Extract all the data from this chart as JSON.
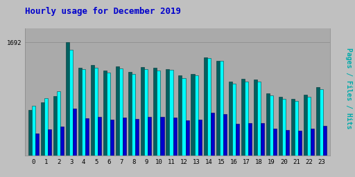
{
  "title": "Hourly usage for December 2019",
  "hours": [
    0,
    1,
    2,
    3,
    4,
    5,
    6,
    7,
    8,
    9,
    10,
    11,
    12,
    13,
    14,
    15,
    16,
    17,
    18,
    19,
    20,
    21,
    22,
    23
  ],
  "hits": [
    750,
    860,
    960,
    1580,
    1290,
    1310,
    1240,
    1300,
    1220,
    1290,
    1270,
    1280,
    1160,
    1200,
    1460,
    1410,
    1080,
    1110,
    1110,
    900,
    850,
    820,
    880,
    990
  ],
  "files": [
    680,
    800,
    890,
    1692,
    1310,
    1350,
    1270,
    1330,
    1255,
    1320,
    1310,
    1295,
    1195,
    1215,
    1470,
    1415,
    1110,
    1145,
    1140,
    930,
    875,
    845,
    910,
    1020
  ],
  "pages": [
    330,
    390,
    440,
    700,
    560,
    580,
    540,
    570,
    550,
    580,
    580,
    570,
    530,
    540,
    640,
    620,
    480,
    490,
    490,
    400,
    380,
    370,
    400,
    450
  ],
  "files_color": "#006060",
  "hits_color": "#00ffff",
  "pages_color": "#0000cc",
  "background_color": "#c0c0c0",
  "plot_bg_color": "#aaaaaa",
  "title_color": "#0000cc",
  "pages_label_color": "#0000aa",
  "files_label_color": "#006060",
  "hits_label_color": "#00aaaa",
  "ytick_value": 1692,
  "ylim": [
    0,
    1900
  ],
  "bar_width": 0.28,
  "figsize": [
    5.12,
    2.56
  ],
  "dpi": 100
}
